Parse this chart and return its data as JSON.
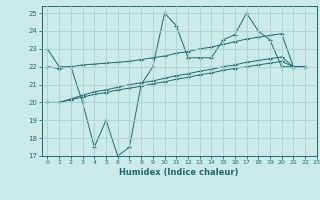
{
  "xlabel": "Humidex (Indice chaleur)",
  "background_color": "#cceaea",
  "grid_color": "#aad0d0",
  "line_color": "#1a6b6b",
  "xlim": [
    -0.5,
    23
  ],
  "ylim": [
    17,
    25.4
  ],
  "xticks": [
    0,
    1,
    2,
    3,
    4,
    5,
    6,
    7,
    8,
    9,
    10,
    11,
    12,
    13,
    14,
    15,
    16,
    17,
    18,
    19,
    20,
    21,
    22,
    23
  ],
  "yticks": [
    17,
    18,
    19,
    20,
    21,
    22,
    23,
    24,
    25
  ],
  "series1_x": [
    0,
    1,
    2,
    3,
    4,
    5,
    6,
    7,
    8,
    9,
    10,
    11,
    12,
    13,
    14,
    15,
    16,
    17,
    18,
    19,
    20,
    21,
    22
  ],
  "series1_y": [
    23,
    22,
    22,
    20,
    17.5,
    19,
    17,
    17.5,
    21,
    22,
    25,
    24.3,
    22.5,
    22.5,
    22.5,
    23.5,
    23.8,
    25,
    24,
    23.5,
    22,
    22,
    22
  ],
  "series2_x": [
    0,
    1,
    2,
    3,
    4,
    5,
    6,
    7,
    8,
    9,
    10,
    11,
    12,
    13,
    14,
    15,
    16,
    17,
    18,
    19,
    20,
    21,
    22
  ],
  "series2_y": [
    22,
    21.9,
    22.0,
    22.1,
    22.15,
    22.2,
    22.25,
    22.3,
    22.4,
    22.5,
    22.6,
    22.75,
    22.85,
    23.0,
    23.1,
    23.25,
    23.4,
    23.55,
    23.65,
    23.75,
    23.85,
    22.0,
    22.0
  ],
  "series3_x": [
    0,
    1,
    2,
    3,
    4,
    5,
    6,
    7,
    8,
    9,
    10,
    11,
    12,
    13,
    14,
    15,
    16,
    17,
    18,
    19,
    20,
    21,
    22
  ],
  "series3_y": [
    20,
    20.0,
    20.2,
    20.4,
    20.6,
    20.7,
    20.85,
    21.0,
    21.1,
    21.2,
    21.35,
    21.5,
    21.6,
    21.75,
    21.85,
    22.0,
    22.1,
    22.25,
    22.35,
    22.45,
    22.55,
    22.0,
    22.0
  ],
  "series4_x": [
    0,
    1,
    2,
    3,
    4,
    5,
    6,
    7,
    8,
    9,
    10,
    11,
    12,
    13,
    14,
    15,
    16,
    17,
    18,
    19,
    20,
    21,
    22
  ],
  "series4_y": [
    20,
    20.0,
    20.15,
    20.3,
    20.45,
    20.55,
    20.7,
    20.8,
    20.9,
    21.05,
    21.15,
    21.3,
    21.4,
    21.55,
    21.65,
    21.8,
    21.9,
    22.0,
    22.1,
    22.2,
    22.3,
    22.0,
    22.0
  ]
}
